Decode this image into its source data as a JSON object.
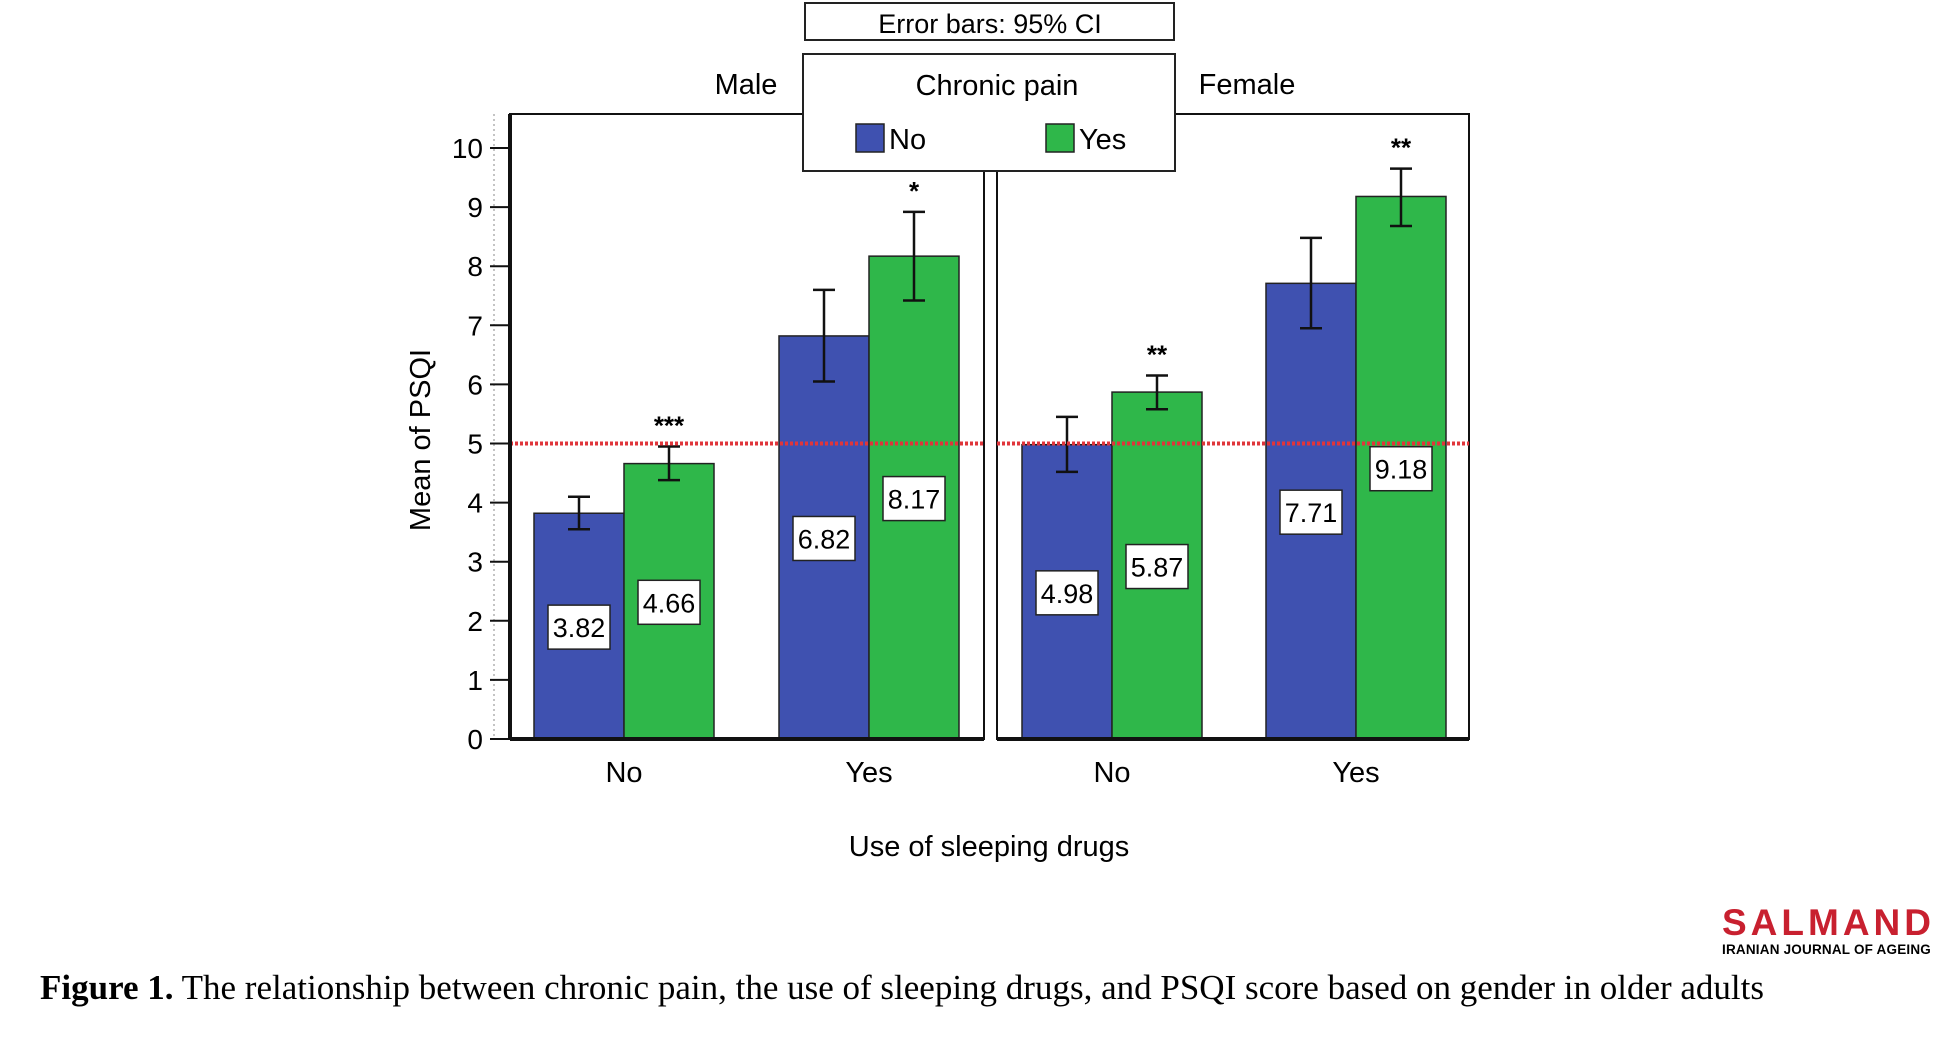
{
  "chart_data": {
    "type": "bar",
    "error_note": "Error bars: 95% CI",
    "ylabel": "Mean of PSQI",
    "xlabel": "Use of sleeping drugs",
    "ylim": [
      0,
      10.5
    ],
    "yticks": [
      0,
      1,
      2,
      3,
      4,
      5,
      6,
      7,
      8,
      9,
      10
    ],
    "reference_line": 5,
    "legend": {
      "title": "Chronic pain",
      "position": "top-center",
      "entries": [
        {
          "label": "No",
          "color": "#3f51b0"
        },
        {
          "label": "Yes",
          "color": "#2fb74a"
        }
      ]
    },
    "colors": {
      "no": "#3f51b0",
      "yes": "#2fb74a",
      "reference": "#e0353b"
    },
    "panels": [
      {
        "title": "Male",
        "categories": [
          "No",
          "Yes"
        ],
        "series": [
          {
            "name": "No",
            "values": [
              3.82,
              6.82
            ],
            "ci_low": [
              3.55,
              6.05
            ],
            "ci_high": [
              4.1,
              7.6
            ]
          },
          {
            "name": "Yes",
            "values": [
              4.66,
              8.17
            ],
            "ci_low": [
              4.38,
              7.42
            ],
            "ci_high": [
              4.95,
              8.92
            ]
          }
        ],
        "significance": [
          "***",
          "*"
        ]
      },
      {
        "title": "Female",
        "categories": [
          "No",
          "Yes"
        ],
        "series": [
          {
            "name": "No",
            "values": [
              4.98,
              7.71
            ],
            "ci_low": [
              4.52,
              6.95
            ],
            "ci_high": [
              5.45,
              8.48
            ]
          },
          {
            "name": "Yes",
            "values": [
              5.87,
              9.18
            ],
            "ci_low": [
              5.58,
              8.68
            ],
            "ci_high": [
              6.15,
              9.65
            ]
          }
        ],
        "significance": [
          "**",
          "**"
        ]
      }
    ]
  },
  "caption": {
    "label": "Figure 1.",
    "text": " The relationship between chronic pain, the use of sleeping drugs, and PSQI score based on gender in older adults"
  },
  "logo": {
    "name": "SALMAND",
    "subtitle": "IRANIAN JOURNAL OF AGEING"
  }
}
